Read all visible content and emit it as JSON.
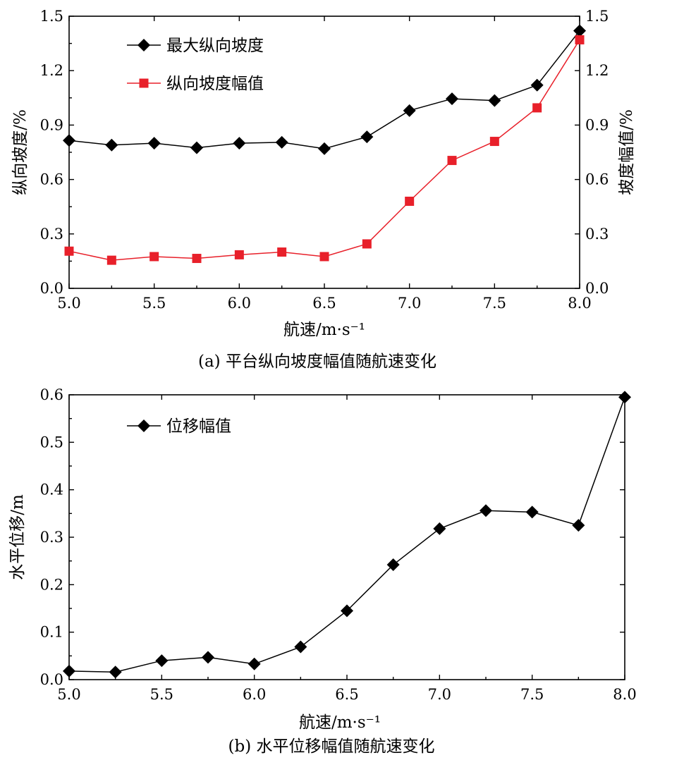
{
  "chart_data": [
    {
      "type": "line",
      "caption": "(a) 平台纵向坡度幅值随航速变化",
      "xlabel": "航速/m·s⁻¹",
      "ylabel": "纵向坡度/%",
      "y2label": "坡度幅值/%",
      "xlim": [
        5.0,
        8.0
      ],
      "ylim": [
        0.0,
        1.5
      ],
      "y2lim": [
        0.0,
        1.5
      ],
      "xticks": [
        "5.0",
        "5.5",
        "6.0",
        "6.5",
        "7.0",
        "7.5",
        "8.0"
      ],
      "yticks": [
        "0.0",
        "0.3",
        "0.6",
        "0.9",
        "1.2",
        "1.5"
      ],
      "y2ticks": [
        "0.0",
        "0.3",
        "0.6",
        "0.9",
        "1.2",
        "1.5"
      ],
      "legend_position": "top-left",
      "x": [
        5.0,
        5.25,
        5.5,
        5.75,
        6.0,
        6.25,
        6.5,
        6.75,
        7.0,
        7.25,
        7.5,
        7.75,
        8.0
      ],
      "series": [
        {
          "name": "最大纵向坡度",
          "color": "#000000",
          "marker": "diamond",
          "values": [
            0.815,
            0.79,
            0.8,
            0.775,
            0.8,
            0.805,
            0.77,
            0.835,
            0.98,
            1.045,
            1.035,
            1.12,
            1.42
          ]
        },
        {
          "name": "纵向坡度幅值",
          "color": "#e8202a",
          "marker": "square",
          "values": [
            0.205,
            0.155,
            0.175,
            0.165,
            0.185,
            0.2,
            0.175,
            0.245,
            0.48,
            0.705,
            0.81,
            0.995,
            1.37
          ]
        }
      ]
    },
    {
      "type": "line",
      "caption": "(b) 水平位移幅值随航速变化",
      "xlabel": "航速/m·s⁻¹",
      "ylabel": "水平位移/m",
      "xlim": [
        5.0,
        8.0
      ],
      "ylim": [
        0.0,
        0.6
      ],
      "xticks": [
        "5.0",
        "5.5",
        "6.0",
        "6.5",
        "7.0",
        "7.5",
        "8.0"
      ],
      "yticks": [
        "0.0",
        "0.1",
        "0.2",
        "0.3",
        "0.4",
        "0.5",
        "0.6"
      ],
      "legend_position": "top-left",
      "x": [
        5.0,
        5.25,
        5.5,
        5.75,
        6.0,
        6.25,
        6.5,
        6.75,
        7.0,
        7.25,
        7.5,
        7.75,
        8.0
      ],
      "series": [
        {
          "name": "位移幅值",
          "color": "#000000",
          "marker": "diamond",
          "values": [
            0.018,
            0.016,
            0.04,
            0.047,
            0.033,
            0.069,
            0.145,
            0.242,
            0.318,
            0.356,
            0.353,
            0.325,
            0.595
          ]
        }
      ]
    }
  ]
}
